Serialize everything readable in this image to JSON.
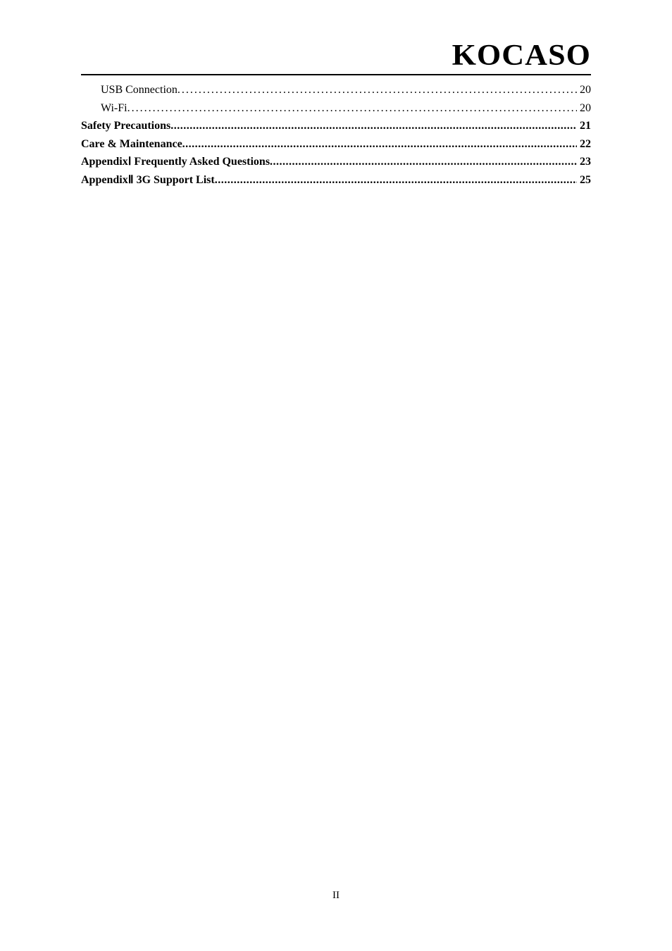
{
  "logo": "KOCASO",
  "toc": {
    "entries": [
      {
        "label": "USB Connection",
        "page": "20",
        "level": "sub"
      },
      {
        "label": "Wi-Fi",
        "page": "20",
        "level": "sub"
      },
      {
        "label": "Safety Precautions",
        "page": "21",
        "level": "main"
      },
      {
        "label": "Care & Maintenance",
        "page": "22",
        "level": "main"
      },
      {
        "label": "AppendixⅠ Frequently Asked Questions",
        "page": "23",
        "level": "main"
      },
      {
        "label": "AppendixⅡ 3G Support List",
        "page": "25",
        "level": "main"
      }
    ]
  },
  "pageNumber": "II"
}
